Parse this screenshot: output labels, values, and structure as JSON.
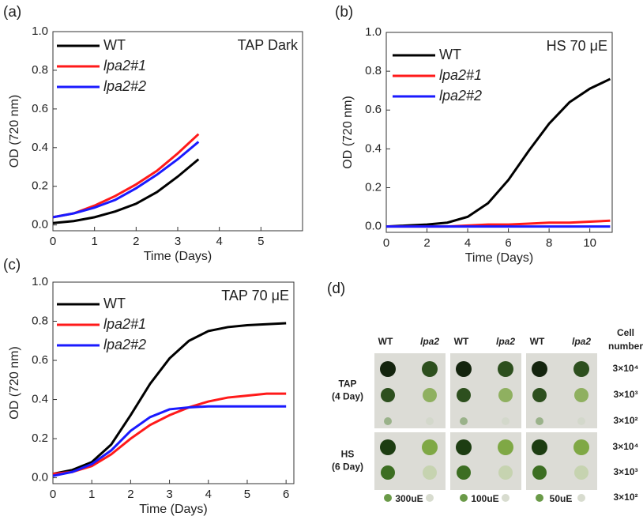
{
  "chart_data": [
    {
      "type": "line",
      "panel_label": "(a)",
      "title": "TAP Dark",
      "x_label": "Time (Days)",
      "y_label": "OD (720 nm)",
      "xlim": [
        0,
        6
      ],
      "xticks": [
        0,
        1,
        2,
        3,
        4,
        5
      ],
      "ylim": [
        -0.03,
        1.0
      ],
      "yticks": [
        {
          "value": 0,
          "label": "0.0"
        },
        0.2,
        0.4,
        0.6,
        0.8,
        {
          "value": 1,
          "label": "1.0"
        }
      ],
      "x": [
        0,
        0.5,
        1,
        1.5,
        2,
        2.5,
        3,
        3.5
      ],
      "series": [
        {
          "name": "WT",
          "color": "#000000",
          "values": [
            0.01,
            0.02,
            0.04,
            0.07,
            0.11,
            0.17,
            0.25,
            0.34
          ]
        },
        {
          "name": "lpa2#1",
          "color": "#ff1a1a",
          "values": [
            0.04,
            0.06,
            0.1,
            0.15,
            0.21,
            0.28,
            0.37,
            0.47
          ]
        },
        {
          "name": "lpa2#2",
          "color": "#1a1aff",
          "values": [
            0.04,
            0.06,
            0.09,
            0.13,
            0.19,
            0.26,
            0.34,
            0.43
          ]
        }
      ]
    },
    {
      "type": "line",
      "panel_label": "(b)",
      "title": "HS 70 μE",
      "x_label": "Time (Days)",
      "y_label": "OD (720 nm)",
      "xlim": [
        0,
        11.1
      ],
      "xticks": [
        0,
        2,
        4,
        6,
        8,
        10
      ],
      "ylim": [
        -0.03,
        1.0
      ],
      "yticks": [
        {
          "value": 0,
          "label": "0.0"
        },
        0.2,
        0.4,
        0.6,
        0.8,
        {
          "value": 1,
          "label": "1.0"
        }
      ],
      "x": [
        0,
        1,
        2,
        3,
        4,
        5,
        6,
        7,
        8,
        9,
        10,
        11
      ],
      "series": [
        {
          "name": "WT",
          "color": "#000000",
          "values": [
            0,
            0.005,
            0.01,
            0.02,
            0.05,
            0.12,
            0.24,
            0.39,
            0.53,
            0.64,
            0.71,
            0.76
          ]
        },
        {
          "name": "lpa2#1",
          "color": "#ff1a1a",
          "values": [
            0,
            0,
            0,
            0,
            0.005,
            0.01,
            0.01,
            0.015,
            0.02,
            0.02,
            0.025,
            0.03
          ]
        },
        {
          "name": "lpa2#2",
          "color": "#1a1aff",
          "values": [
            0,
            0,
            0,
            0,
            0,
            0,
            0,
            0,
            0,
            0,
            0,
            0
          ]
        }
      ]
    },
    {
      "type": "line",
      "panel_label": "(c)",
      "title": "TAP 70 μE",
      "x_label": "Time (Days)",
      "y_label": "OD (720 nm)",
      "xlim": [
        0,
        6.2
      ],
      "xticks": [
        0,
        1,
        2,
        3,
        4,
        5,
        6
      ],
      "ylim": [
        -0.03,
        1.0
      ],
      "yticks": [
        {
          "value": 0,
          "label": "0.0"
        },
        0.2,
        0.4,
        0.6,
        0.8,
        {
          "value": 1,
          "label": "1.0"
        }
      ],
      "x": [
        0,
        0.5,
        1,
        1.5,
        2,
        2.5,
        3,
        3.5,
        4,
        4.5,
        5,
        5.5,
        6
      ],
      "series": [
        {
          "name": "WT",
          "color": "#000000",
          "values": [
            0.02,
            0.04,
            0.08,
            0.17,
            0.32,
            0.48,
            0.61,
            0.7,
            0.75,
            0.77,
            0.78,
            0.785,
            0.79
          ]
        },
        {
          "name": "lpa2#1",
          "color": "#ff1a1a",
          "values": [
            0.02,
            0.03,
            0.06,
            0.12,
            0.2,
            0.27,
            0.32,
            0.36,
            0.39,
            0.41,
            0.42,
            0.43,
            0.43
          ]
        },
        {
          "name": "lpa2#2",
          "color": "#1a1aff",
          "values": [
            0.01,
            0.03,
            0.07,
            0.14,
            0.24,
            0.31,
            0.35,
            0.36,
            0.365,
            0.365,
            0.365,
            0.365,
            0.365
          ]
        }
      ]
    }
  ],
  "panel_d": {
    "label": "(d)",
    "columns": [
      {
        "light": "300uE",
        "genotypes": [
          "WT",
          "lpa2"
        ]
      },
      {
        "light": "100uE",
        "genotypes": [
          "WT",
          "lpa2"
        ]
      },
      {
        "light": "50uE",
        "genotypes": [
          "WT",
          "lpa2"
        ]
      }
    ],
    "cell_number_title": [
      "Cell",
      "number"
    ],
    "rows": [
      {
        "medium": "TAP",
        "days": "(4 Day)",
        "dilutions": [
          "3×10⁴",
          "3×10³",
          "3×10²"
        ]
      },
      {
        "medium": "HS",
        "days": "(6 Day)",
        "dilutions": [
          "3×10⁴",
          "3×10³",
          "3×10²"
        ]
      }
    ]
  }
}
